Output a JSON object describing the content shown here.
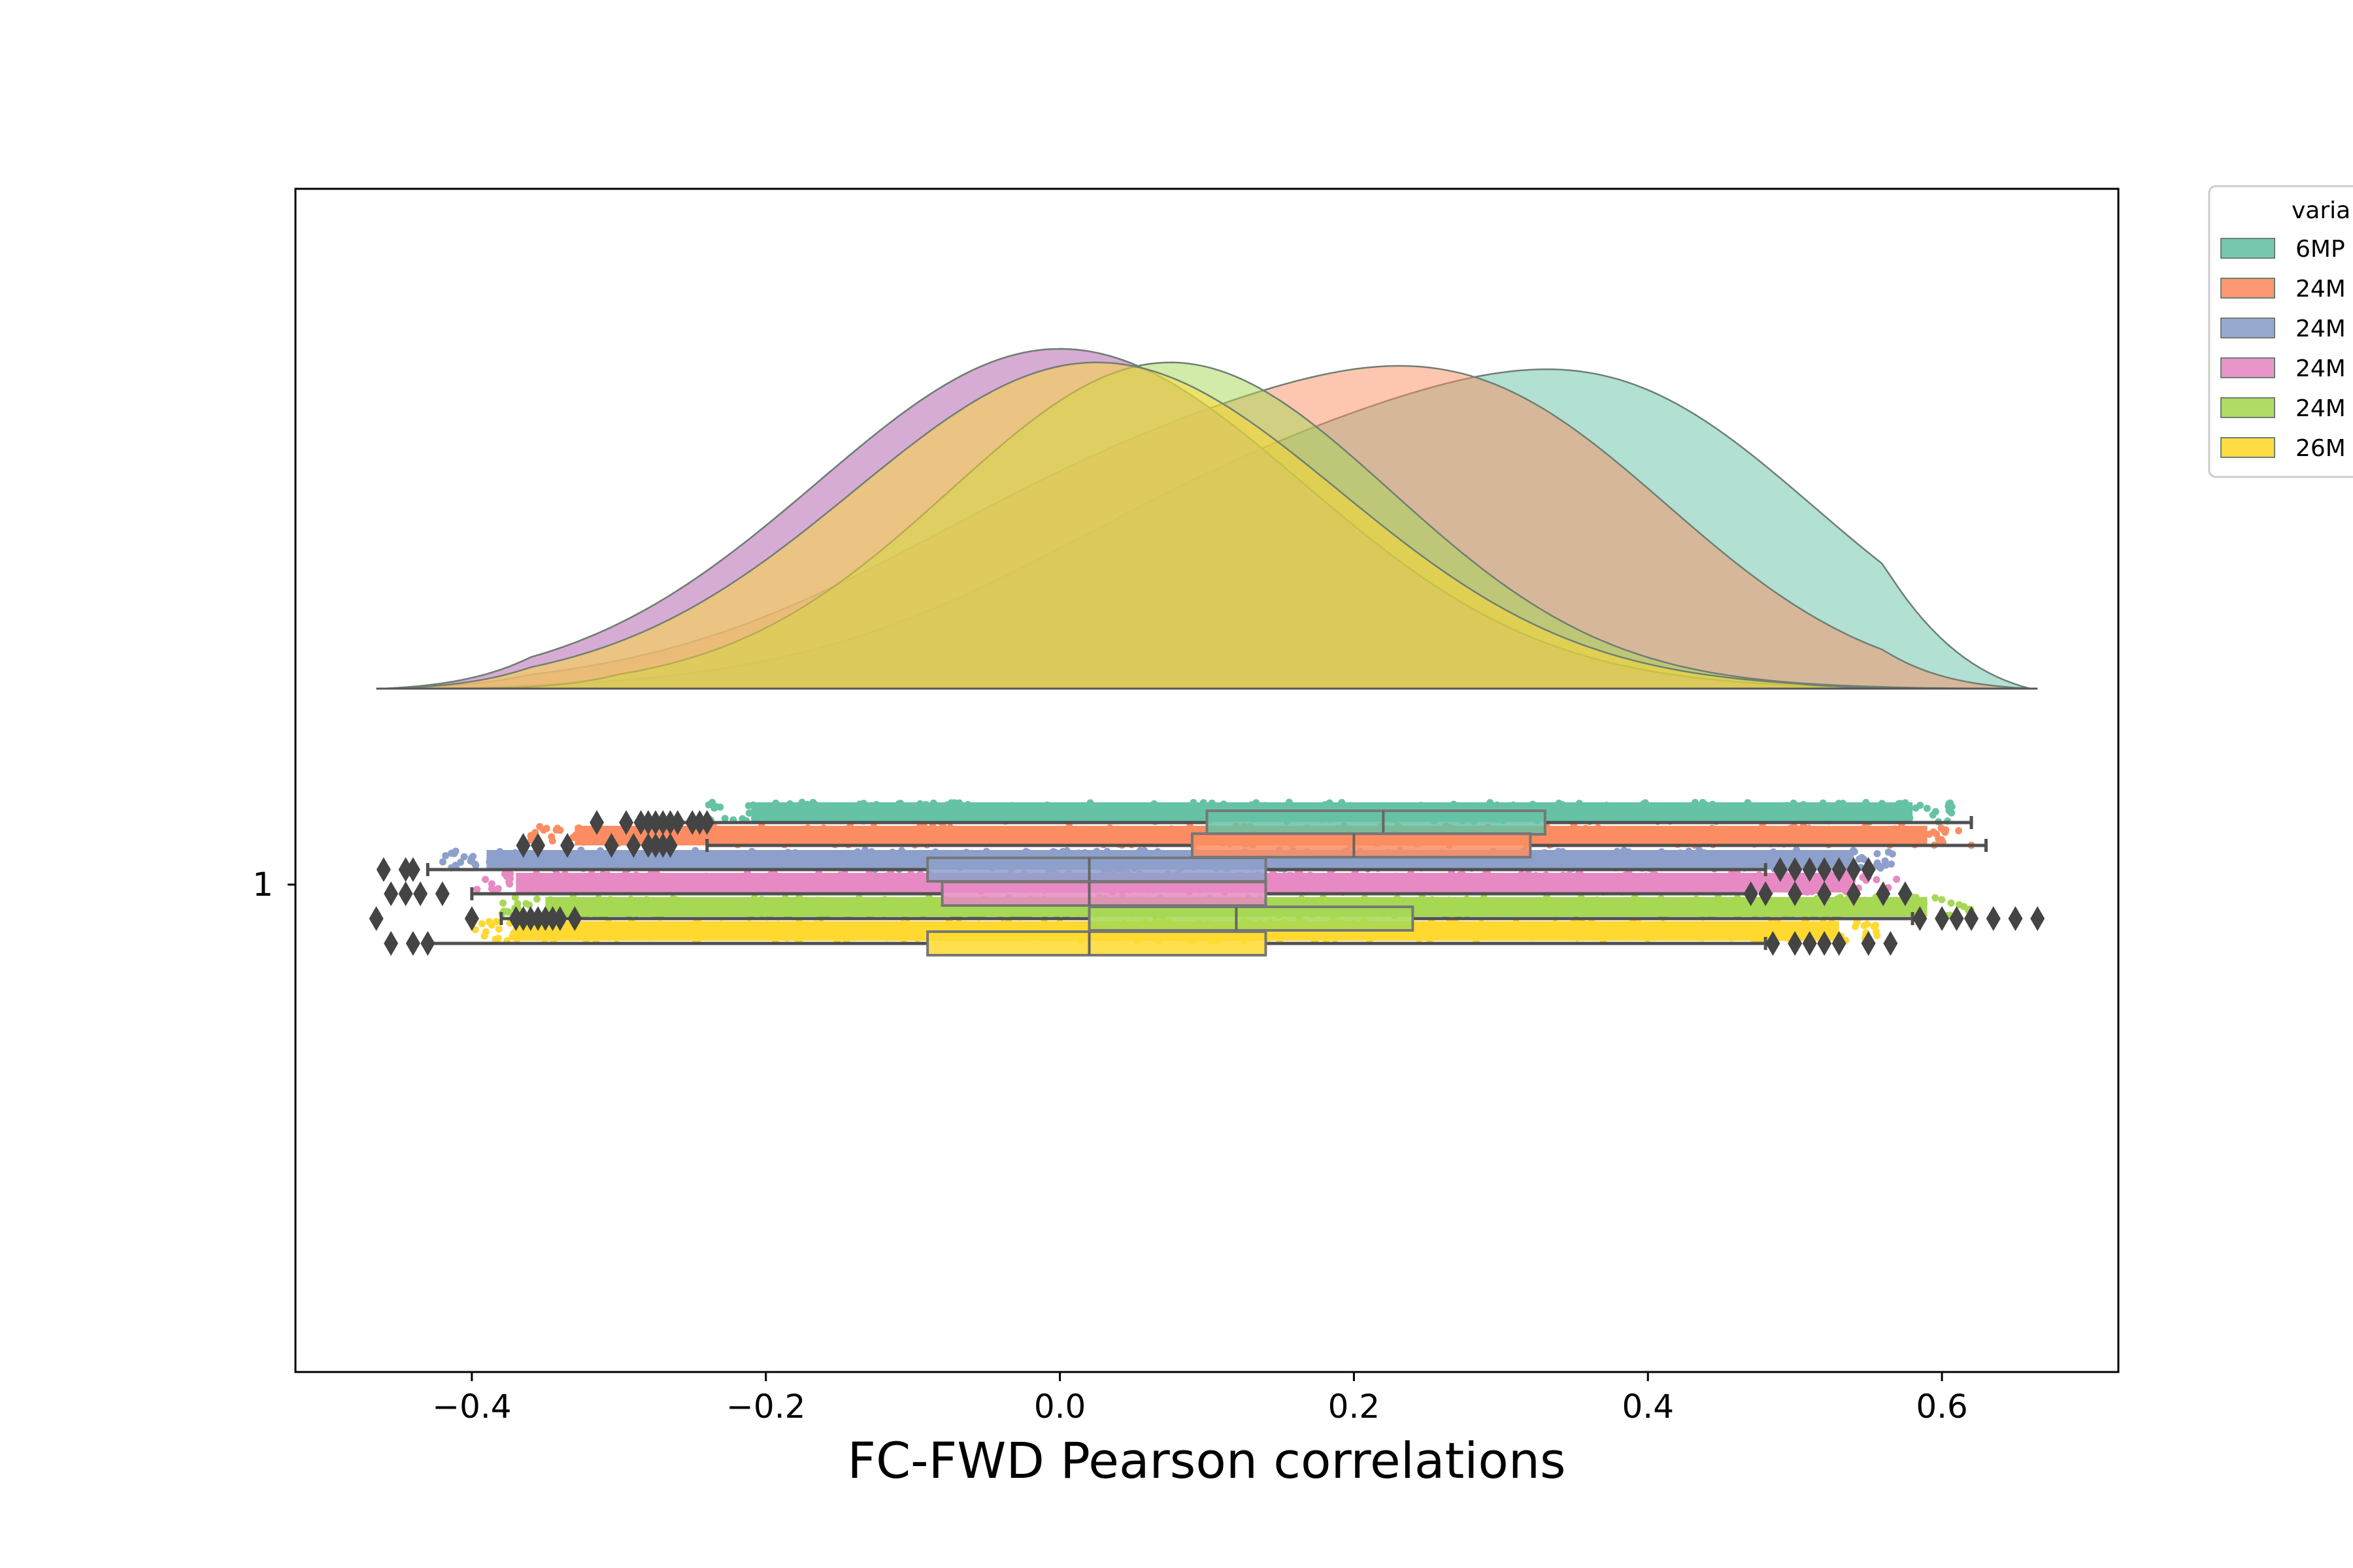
{
  "chart_data": {
    "type": "raincloud",
    "orientation": "horizontal",
    "xlabel": "FC-FWD Pearson correlations",
    "ylabel": "",
    "xlim": [
      -0.52,
      0.72
    ],
    "xticks": [
      -0.4,
      -0.2,
      0.0,
      0.2,
      0.4,
      0.6
    ],
    "xtick_labels": [
      "−0.4",
      "−0.2",
      "0.0",
      "0.2",
      "0.4",
      "0.6"
    ],
    "yticks": [
      "1"
    ],
    "grid": false,
    "legend": {
      "title": "varia",
      "placement": "outside top-right (clipped)",
      "entries": [
        "6MP",
        "24M",
        "24M",
        "24M",
        "24M",
        "26M"
      ]
    },
    "series": [
      {
        "color": "#66c2a5",
        "kde_peak_x": 0.27,
        "kde_range": [
          -0.46,
          0.66
        ],
        "box": {
          "whisker_low": -0.26,
          "q1": 0.1,
          "median": 0.22,
          "q3": 0.33,
          "whisker_high": 0.62
        },
        "scatter_range": [
          -0.24,
          0.61
        ],
        "outliers": [
          -0.315,
          -0.295,
          -0.285,
          -0.28,
          -0.275,
          -0.27,
          -0.265,
          -0.26,
          -0.25,
          -0.245,
          -0.24
        ]
      },
      {
        "color": "#fc8d62",
        "kde_peak_x": 0.17,
        "kde_range": [
          -0.46,
          0.66
        ],
        "box": {
          "whisker_low": -0.24,
          "q1": 0.09,
          "median": 0.2,
          "q3": 0.32,
          "whisker_high": 0.63
        },
        "scatter_range": [
          -0.36,
          0.62
        ],
        "outliers": [
          -0.365,
          -0.355,
          -0.335,
          -0.305,
          -0.29,
          -0.28,
          -0.275,
          -0.27,
          -0.265
        ]
      },
      {
        "color": "#8da0cb",
        "kde_peak_x": 0.0,
        "kde_range": [
          -0.46,
          0.6
        ],
        "box": {
          "whisker_low": -0.43,
          "q1": -0.09,
          "median": 0.02,
          "q3": 0.14,
          "whisker_high": 0.48
        },
        "scatter_range": [
          -0.42,
          0.57
        ],
        "outliers": [
          -0.46,
          -0.445,
          -0.44,
          0.49,
          0.5,
          0.51,
          0.52,
          0.53,
          0.54,
          0.55
        ]
      },
      {
        "color": "#e78ac3",
        "kde_peak_x": 0.0,
        "kde_range": [
          -0.46,
          0.6
        ],
        "box": {
          "whisker_low": -0.4,
          "q1": -0.08,
          "median": 0.02,
          "q3": 0.14,
          "whisker_high": 0.47
        },
        "scatter_range": [
          -0.4,
          0.57
        ],
        "outliers": [
          -0.455,
          -0.445,
          -0.435,
          -0.42,
          0.47,
          0.48,
          0.5,
          0.52,
          0.54,
          0.56,
          0.575
        ]
      },
      {
        "color": "#a6d854",
        "kde_peak_x": 0.075,
        "kde_range": [
          -0.4,
          0.66
        ],
        "box": {
          "whisker_low": -0.38,
          "q1": 0.02,
          "median": 0.12,
          "q3": 0.24,
          "whisker_high": 0.58
        },
        "scatter_range": [
          -0.38,
          0.62
        ],
        "outliers": [
          -0.465,
          -0.4,
          -0.37,
          -0.365,
          -0.36,
          -0.355,
          -0.35,
          -0.345,
          -0.34,
          -0.33,
          0.585,
          0.6,
          0.61,
          0.62,
          0.635,
          0.65,
          0.665
        ]
      },
      {
        "color": "#ffd92f",
        "kde_peak_x": 0.025,
        "kde_range": [
          -0.46,
          0.6
        ],
        "box": {
          "whisker_low": -0.43,
          "q1": -0.09,
          "median": 0.02,
          "q3": 0.14,
          "whisker_high": 0.48
        },
        "scatter_range": [
          -0.4,
          0.56
        ],
        "outliers": [
          -0.455,
          -0.44,
          -0.43,
          0.485,
          0.5,
          0.51,
          0.52,
          0.53,
          0.55,
          0.565
        ]
      }
    ]
  }
}
